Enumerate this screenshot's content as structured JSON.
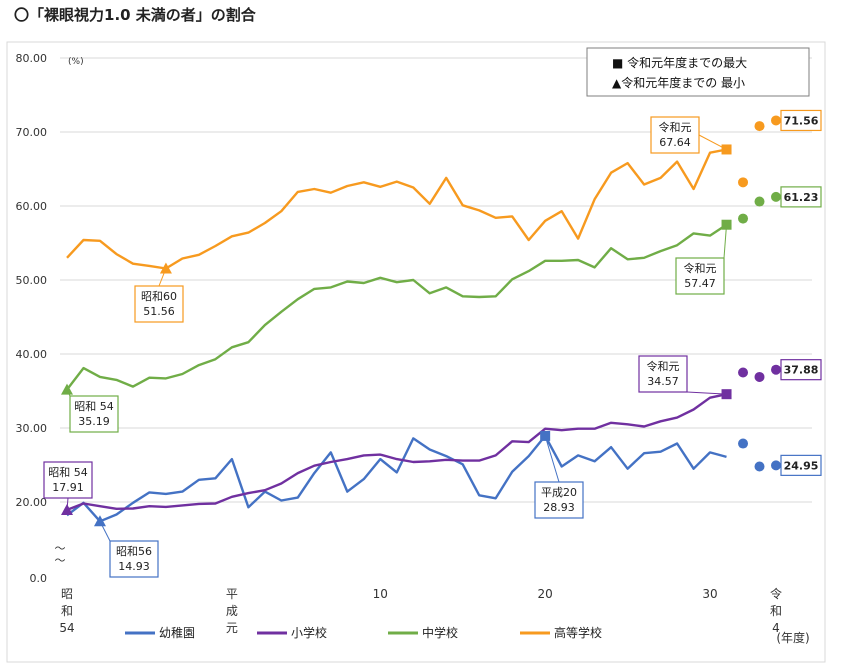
{
  "title": "〇「裸眼視力1.0 未満の者」の割合",
  "chart_data": {
    "type": "line",
    "title": "〇「裸眼視力1.0 未満の者」の割合",
    "unit_label": "(%)",
    "xlabel": "(年度)",
    "ylim": [
      0,
      80
    ],
    "y_ticks": [
      "0.0",
      "20.00",
      "30.00",
      "40.00",
      "50.00",
      "60.00",
      "70.00",
      "80.00"
    ],
    "axis_break": "〜\n〜",
    "x_range": [
      1979,
      2022
    ],
    "x_ticks": [
      {
        "year": 1979,
        "label": "昭\n和\n54"
      },
      {
        "year": 1989,
        "label": "平\n成\n元"
      },
      {
        "year": 1998,
        "label": "10"
      },
      {
        "year": 2008,
        "label": "20"
      },
      {
        "year": 2018,
        "label": "30"
      },
      {
        "year": 2022,
        "label": "令\n和\n4"
      }
    ],
    "legend_box": [
      "■ 令和元年度までの最大",
      "▲令和元年度までの 最小"
    ],
    "series": [
      {
        "name": "幼稚園",
        "color": "#4472C4",
        "years": [
          1979,
          1980,
          1981,
          1982,
          1983,
          1984,
          1985,
          1986,
          1987,
          1988,
          1989,
          1990,
          1991,
          1992,
          1993,
          1994,
          1995,
          1996,
          1997,
          1998,
          1999,
          2000,
          2001,
          2002,
          2003,
          2004,
          2005,
          2006,
          2007,
          2008,
          2009,
          2010,
          2011,
          2012,
          2013,
          2014,
          2015,
          2016,
          2017,
          2018,
          2019
        ],
        "values": [
          16.5,
          19.8,
          14.93,
          16.7,
          19.8,
          21.3,
          21.1,
          21.4,
          23.0,
          23.2,
          25.8,
          18.6,
          21.4,
          20.2,
          20.6,
          23.9,
          26.7,
          21.4,
          23.1,
          25.8,
          24.0,
          28.6,
          27.1,
          26.2,
          25.1,
          20.9,
          20.5,
          24.1,
          26.2,
          28.93,
          24.8,
          26.3,
          25.5,
          27.4,
          24.5,
          26.6,
          26.8,
          27.9,
          24.5,
          26.7,
          26.1
        ],
        "post_years": [
          2020,
          2021,
          2022
        ],
        "post_values": [
          27.9,
          24.8,
          24.95
        ],
        "final_label": "24.95"
      },
      {
        "name": "小学校",
        "color": "#7030A0",
        "years": [
          1979,
          1980,
          1981,
          1982,
          1983,
          1984,
          1985,
          1986,
          1987,
          1988,
          1989,
          1990,
          1991,
          1992,
          1993,
          1994,
          1995,
          1996,
          1997,
          1998,
          1999,
          2000,
          2001,
          2002,
          2003,
          2004,
          2005,
          2006,
          2007,
          2008,
          2009,
          2010,
          2011,
          2012,
          2013,
          2014,
          2015,
          2016,
          2017,
          2018,
          2019
        ],
        "values": [
          17.91,
          19.6,
          18.9,
          18.2,
          18.3,
          18.9,
          18.7,
          19.1,
          19.5,
          19.6,
          20.7,
          21.2,
          21.6,
          22.5,
          23.9,
          24.9,
          25.4,
          25.8,
          26.3,
          26.4,
          25.8,
          25.4,
          25.5,
          25.7,
          25.6,
          25.6,
          26.3,
          28.2,
          28.1,
          29.9,
          29.7,
          29.9,
          29.9,
          30.7,
          30.5,
          30.2,
          30.9,
          31.4,
          32.5,
          34.1,
          34.57
        ],
        "post_years": [
          2020,
          2021,
          2022
        ],
        "post_values": [
          37.5,
          36.9,
          37.88
        ],
        "final_label": "37.88"
      },
      {
        "name": "中学校",
        "color": "#70AD47",
        "years": [
          1979,
          1980,
          1981,
          1982,
          1983,
          1984,
          1985,
          1986,
          1987,
          1988,
          1989,
          1990,
          1991,
          1992,
          1993,
          1994,
          1995,
          1996,
          1997,
          1998,
          1999,
          2000,
          2001,
          2002,
          2003,
          2004,
          2005,
          2006,
          2007,
          2008,
          2009,
          2010,
          2011,
          2012,
          2013,
          2014,
          2015,
          2016,
          2017,
          2018,
          2019
        ],
        "values": [
          35.19,
          38.1,
          36.9,
          36.5,
          35.6,
          36.8,
          36.7,
          37.3,
          38.5,
          39.3,
          40.9,
          41.6,
          43.9,
          45.7,
          47.4,
          48.8,
          49.0,
          49.8,
          49.6,
          50.3,
          49.7,
          50.0,
          48.2,
          49.0,
          47.8,
          47.7,
          47.8,
          50.1,
          51.2,
          52.6,
          52.6,
          52.7,
          51.7,
          54.3,
          52.8,
          53.0,
          53.9,
          54.7,
          56.3,
          56.0,
          57.47
        ],
        "post_years": [
          2020,
          2021,
          2022
        ],
        "post_values": [
          58.3,
          60.6,
          61.23
        ],
        "final_label": "61.23"
      },
      {
        "name": "高等学校",
        "color": "#F79A1F",
        "years": [
          1979,
          1980,
          1981,
          1982,
          1983,
          1984,
          1985,
          1986,
          1987,
          1988,
          1989,
          1990,
          1991,
          1992,
          1993,
          1994,
          1995,
          1996,
          1997,
          1998,
          1999,
          2000,
          2001,
          2002,
          2003,
          2004,
          2005,
          2006,
          2007,
          2008,
          2009,
          2010,
          2011,
          2012,
          2013,
          2014,
          2015,
          2016,
          2017,
          2018,
          2019
        ],
        "values": [
          53.0,
          55.4,
          55.3,
          53.5,
          52.2,
          51.9,
          51.56,
          52.9,
          53.4,
          54.6,
          55.9,
          56.4,
          57.7,
          59.3,
          61.9,
          62.3,
          61.8,
          62.7,
          63.2,
          62.6,
          63.3,
          62.5,
          60.3,
          63.8,
          60.1,
          59.4,
          58.4,
          58.6,
          55.4,
          58.0,
          59.3,
          55.6,
          60.9,
          64.5,
          65.8,
          62.9,
          63.8,
          66.0,
          62.3,
          67.2,
          67.64
        ],
        "post_years": [
          2020,
          2021,
          2022
        ],
        "post_values": [
          63.2,
          70.8,
          71.56
        ],
        "final_label": "71.56"
      }
    ],
    "annotations": [
      {
        "text": [
          "昭和60",
          "51.56"
        ],
        "series": "高等学校",
        "year": 1985,
        "value": 51.56,
        "marker": "triangle"
      },
      {
        "text": [
          "令和元",
          "67.64"
        ],
        "series": "高等学校",
        "year": 2019,
        "value": 67.64,
        "marker": "square"
      },
      {
        "text": [
          "昭和 54",
          "35.19"
        ],
        "series": "中学校",
        "year": 1979,
        "value": 35.19,
        "marker": "triangle"
      },
      {
        "text": [
          "令和元",
          "57.47"
        ],
        "series": "中学校",
        "year": 2019,
        "value": 57.47,
        "marker": "square"
      },
      {
        "text": [
          "令和元",
          "34.57"
        ],
        "series": "小学校",
        "year": 2019,
        "value": 34.57,
        "marker": "square"
      },
      {
        "text": [
          "昭和 54",
          "17.91"
        ],
        "series": "小学校",
        "year": 1979,
        "value": 17.91,
        "marker": "triangle"
      },
      {
        "text": [
          "昭和56",
          "14.93"
        ],
        "series": "幼稚園",
        "year": 1981,
        "value": 14.93,
        "marker": "triangle"
      },
      {
        "text": [
          "平成20",
          "28.93"
        ],
        "series": "幼稚園",
        "year": 2008,
        "value": 28.93,
        "marker": "square"
      }
    ]
  }
}
